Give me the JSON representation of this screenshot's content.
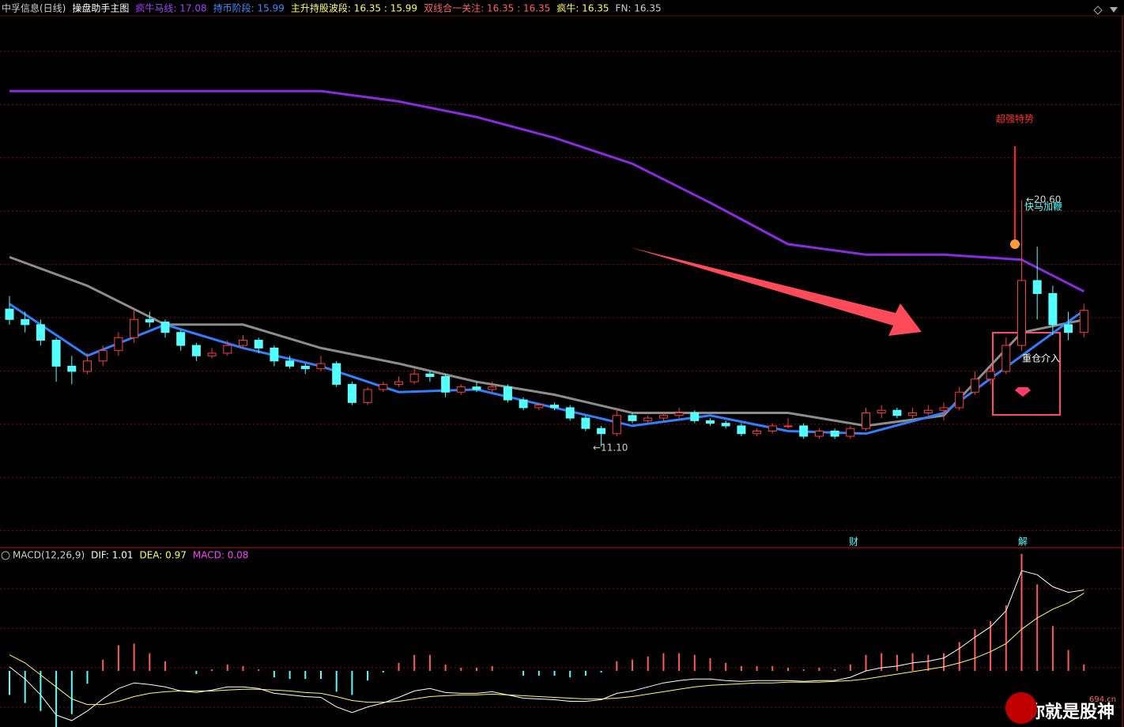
{
  "chart_data": {
    "type": "candlestick",
    "header": [
      {
        "text": "中孚信息(日线)",
        "color": "#d0d0d0"
      },
      {
        "text": "操盘助手主图",
        "color": "#ffffff"
      },
      {
        "text": "疯牛马线: 17.08",
        "color": "#a040ff"
      },
      {
        "text": "持币阶段: 15.99",
        "color": "#3c8cff"
      },
      {
        "text": "主升持股波段: 16.35 : 15.99",
        "color": "#ffff60"
      },
      {
        "text": "双线合一关注: 16.35 : 16.35",
        "color": "#ff6060"
      },
      {
        "text": "疯牛: 16.35",
        "color": "#ffff60"
      },
      {
        "text": "FN: 16.35",
        "color": "#d0d0d0"
      }
    ],
    "ylim": [
      7.3,
      27.7
    ],
    "candles": [
      [
        16.4,
        16.9,
        15.8,
        16.0
      ],
      [
        16.0,
        16.3,
        15.5,
        15.8
      ],
      [
        15.8,
        16.0,
        15.0,
        15.2
      ],
      [
        15.2,
        15.3,
        13.6,
        14.2
      ],
      [
        14.2,
        14.6,
        13.5,
        14.0
      ],
      [
        14.0,
        14.7,
        13.9,
        14.4
      ],
      [
        14.4,
        15.0,
        14.2,
        14.8
      ],
      [
        14.8,
        15.5,
        14.6,
        15.3
      ],
      [
        15.3,
        16.4,
        15.1,
        16.0
      ],
      [
        16.0,
        16.3,
        15.7,
        15.9
      ],
      [
        15.9,
        16.0,
        15.3,
        15.5
      ],
      [
        15.5,
        15.6,
        14.8,
        15.0
      ],
      [
        15.0,
        15.1,
        14.4,
        14.6
      ],
      [
        14.6,
        14.9,
        14.5,
        14.7
      ],
      [
        14.7,
        15.2,
        14.6,
        15.0
      ],
      [
        15.0,
        15.4,
        14.9,
        15.2
      ],
      [
        15.2,
        15.3,
        14.7,
        14.9
      ],
      [
        14.9,
        15.0,
        14.2,
        14.4
      ],
      [
        14.4,
        14.6,
        14.1,
        14.2
      ],
      [
        14.2,
        14.3,
        13.9,
        14.1
      ],
      [
        14.1,
        14.6,
        14.0,
        14.3
      ],
      [
        14.3,
        14.4,
        13.4,
        13.5
      ],
      [
        13.5,
        13.6,
        12.7,
        12.8
      ],
      [
        12.8,
        13.4,
        12.7,
        13.3
      ],
      [
        13.3,
        13.6,
        13.2,
        13.5
      ],
      [
        13.5,
        13.8,
        13.4,
        13.6
      ],
      [
        13.6,
        14.1,
        13.5,
        13.9
      ],
      [
        13.9,
        14.0,
        13.6,
        13.8
      ],
      [
        13.8,
        13.9,
        13.0,
        13.2
      ],
      [
        13.2,
        13.5,
        13.1,
        13.4
      ],
      [
        13.4,
        13.6,
        13.2,
        13.3
      ],
      [
        13.3,
        13.6,
        13.2,
        13.4
      ],
      [
        13.4,
        13.5,
        12.8,
        12.9
      ],
      [
        12.9,
        13.0,
        12.5,
        12.6
      ],
      [
        12.6,
        12.8,
        12.5,
        12.7
      ],
      [
        12.7,
        12.8,
        12.5,
        12.6
      ],
      [
        12.6,
        12.7,
        12.1,
        12.2
      ],
      [
        12.2,
        12.3,
        11.7,
        11.8
      ],
      [
        11.8,
        11.9,
        11.1,
        11.6
      ],
      [
        11.6,
        12.6,
        11.5,
        12.3
      ],
      [
        12.3,
        12.4,
        12.0,
        12.1
      ],
      [
        12.1,
        12.3,
        12.0,
        12.2
      ],
      [
        12.2,
        12.4,
        12.1,
        12.3
      ],
      [
        12.3,
        12.6,
        12.2,
        12.4
      ],
      [
        12.4,
        12.5,
        12.0,
        12.1
      ],
      [
        12.1,
        12.2,
        11.9,
        12.0
      ],
      [
        12.0,
        12.1,
        11.8,
        11.9
      ],
      [
        11.9,
        12.0,
        11.5,
        11.6
      ],
      [
        11.6,
        11.8,
        11.5,
        11.7
      ],
      [
        11.7,
        12.0,
        11.6,
        11.9
      ],
      [
        11.9,
        12.2,
        11.8,
        11.9
      ],
      [
        11.9,
        12.0,
        11.4,
        11.5
      ],
      [
        11.5,
        11.8,
        11.4,
        11.7
      ],
      [
        11.7,
        11.8,
        11.4,
        11.5
      ],
      [
        11.5,
        11.9,
        11.4,
        11.8
      ],
      [
        11.8,
        12.6,
        11.7,
        12.4
      ],
      [
        12.4,
        12.7,
        12.2,
        12.5
      ],
      [
        12.5,
        12.6,
        12.2,
        12.3
      ],
      [
        12.3,
        12.6,
        12.2,
        12.4
      ],
      [
        12.4,
        12.7,
        12.3,
        12.5
      ],
      [
        12.5,
        12.8,
        12.1,
        12.6
      ],
      [
        12.6,
        13.4,
        12.5,
        13.2
      ],
      [
        13.2,
        14.0,
        13.1,
        13.7
      ],
      [
        13.7,
        14.2,
        13.5,
        14.0
      ],
      [
        14.0,
        15.3,
        13.9,
        15.0
      ],
      [
        15.0,
        20.6,
        14.8,
        17.5
      ],
      [
        17.5,
        18.8,
        16.0,
        17.0
      ],
      [
        17.0,
        17.3,
        15.4,
        15.8
      ],
      [
        15.8,
        16.3,
        15.2,
        15.5
      ],
      [
        15.5,
        16.6,
        15.3,
        16.35
      ]
    ],
    "up_color": "#ff3c3c",
    "down_color": "#54ffff",
    "lines": [
      {
        "color": "#8a2be2",
        "x": [
          0,
          5,
          10,
          15,
          20,
          25,
          30,
          35,
          40,
          45,
          50,
          55,
          60,
          65,
          69
        ],
        "values": [
          24.8,
          24.8,
          24.8,
          24.8,
          24.8,
          24.4,
          23.8,
          23.0,
          22.0,
          20.5,
          18.9,
          18.5,
          18.5,
          18.3,
          17.08
        ]
      },
      {
        "color": "#8c8c8c",
        "x": [
          0,
          5,
          10,
          15,
          20,
          25,
          30,
          35,
          40,
          45,
          50,
          55,
          60,
          65,
          69
        ],
        "values": [
          18.4,
          17.3,
          15.8,
          15.8,
          14.9,
          14.3,
          13.6,
          13.1,
          12.4,
          12.4,
          12.4,
          11.9,
          12.3,
          15.5,
          15.99
        ]
      },
      {
        "color": "#2f7fff",
        "x": [
          0,
          5,
          10,
          15,
          20,
          25,
          30,
          35,
          40,
          45,
          50,
          55,
          60,
          65,
          69
        ],
        "values": [
          16.6,
          14.6,
          15.8,
          14.9,
          14.2,
          13.2,
          13.3,
          12.6,
          11.9,
          12.3,
          11.7,
          11.6,
          12.4,
          14.6,
          16.35
        ]
      }
    ],
    "annotations": [
      "超强特势",
      "←20.60",
      "快马加鞭",
      "重仓介入",
      "←11.10",
      "财",
      "解"
    ],
    "macd": {
      "header": [
        {
          "text": "MACD(12,26,9)",
          "color": "#d0d0d0"
        },
        {
          "text": "DIF: 1.01",
          "color": "#ffffff"
        },
        {
          "text": "DEA: 0.97",
          "color": "#ffff60"
        },
        {
          "text": "MACD: 0.08",
          "color": "#ff40ff"
        }
      ],
      "ylim": [
        -0.7,
        1.42
      ],
      "dif": [
        0.05,
        -0.1,
        -0.3,
        -0.55,
        -0.62,
        -0.5,
        -0.35,
        -0.22,
        -0.15,
        -0.17,
        -0.2,
        -0.25,
        -0.27,
        -0.24,
        -0.2,
        -0.2,
        -0.22,
        -0.28,
        -0.3,
        -0.32,
        -0.33,
        -0.45,
        -0.52,
        -0.45,
        -0.4,
        -0.33,
        -0.25,
        -0.22,
        -0.27,
        -0.28,
        -0.28,
        -0.26,
        -0.3,
        -0.34,
        -0.35,
        -0.36,
        -0.38,
        -0.38,
        -0.36,
        -0.28,
        -0.25,
        -0.2,
        -0.15,
        -0.12,
        -0.1,
        -0.1,
        -0.12,
        -0.13,
        -0.12,
        -0.12,
        -0.12,
        -0.13,
        -0.12,
        -0.12,
        -0.08,
        0.0,
        0.04,
        0.06,
        0.1,
        0.12,
        0.16,
        0.28,
        0.42,
        0.55,
        0.75,
        1.25,
        1.2,
        1.05,
        0.98,
        1.01
      ],
      "dea": [
        0.2,
        0.1,
        -0.05,
        -0.2,
        -0.35,
        -0.42,
        -0.42,
        -0.38,
        -0.32,
        -0.28,
        -0.26,
        -0.25,
        -0.25,
        -0.25,
        -0.24,
        -0.23,
        -0.23,
        -0.24,
        -0.25,
        -0.27,
        -0.28,
        -0.32,
        -0.37,
        -0.39,
        -0.39,
        -0.38,
        -0.35,
        -0.32,
        -0.31,
        -0.3,
        -0.3,
        -0.29,
        -0.3,
        -0.31,
        -0.32,
        -0.33,
        -0.34,
        -0.35,
        -0.35,
        -0.34,
        -0.32,
        -0.29,
        -0.26,
        -0.23,
        -0.2,
        -0.18,
        -0.17,
        -0.16,
        -0.15,
        -0.15,
        -0.14,
        -0.14,
        -0.14,
        -0.13,
        -0.12,
        -0.1,
        -0.07,
        -0.04,
        -0.01,
        0.02,
        0.05,
        0.1,
        0.16,
        0.24,
        0.34,
        0.52,
        0.66,
        0.77,
        0.85,
        0.97
      ],
      "hist": [
        -0.3,
        -0.4,
        -0.5,
        -0.7,
        -0.54,
        -0.16,
        0.14,
        0.32,
        0.34,
        0.22,
        0.12,
        0,
        -0.04,
        0.02,
        0.08,
        0.06,
        0.02,
        -0.08,
        -0.1,
        -0.1,
        -0.1,
        -0.26,
        -0.3,
        -0.12,
        -0.02,
        0.1,
        0.2,
        0.2,
        0.08,
        0.04,
        0.04,
        0.06,
        0,
        -0.06,
        -0.06,
        -0.06,
        -0.08,
        -0.06,
        -0.02,
        0.12,
        0.14,
        0.18,
        0.22,
        0.22,
        0.2,
        0.16,
        0.1,
        0.06,
        0.06,
        0.06,
        0.04,
        0.02,
        0.04,
        0.02,
        0.08,
        0.2,
        0.22,
        0.2,
        0.22,
        0.2,
        0.22,
        0.36,
        0.52,
        0.62,
        0.82,
        1.46,
        1.08,
        0.56,
        0.26,
        0.08
      ]
    },
    "watermark": [
      "你就是股神",
      "694.cn"
    ]
  }
}
